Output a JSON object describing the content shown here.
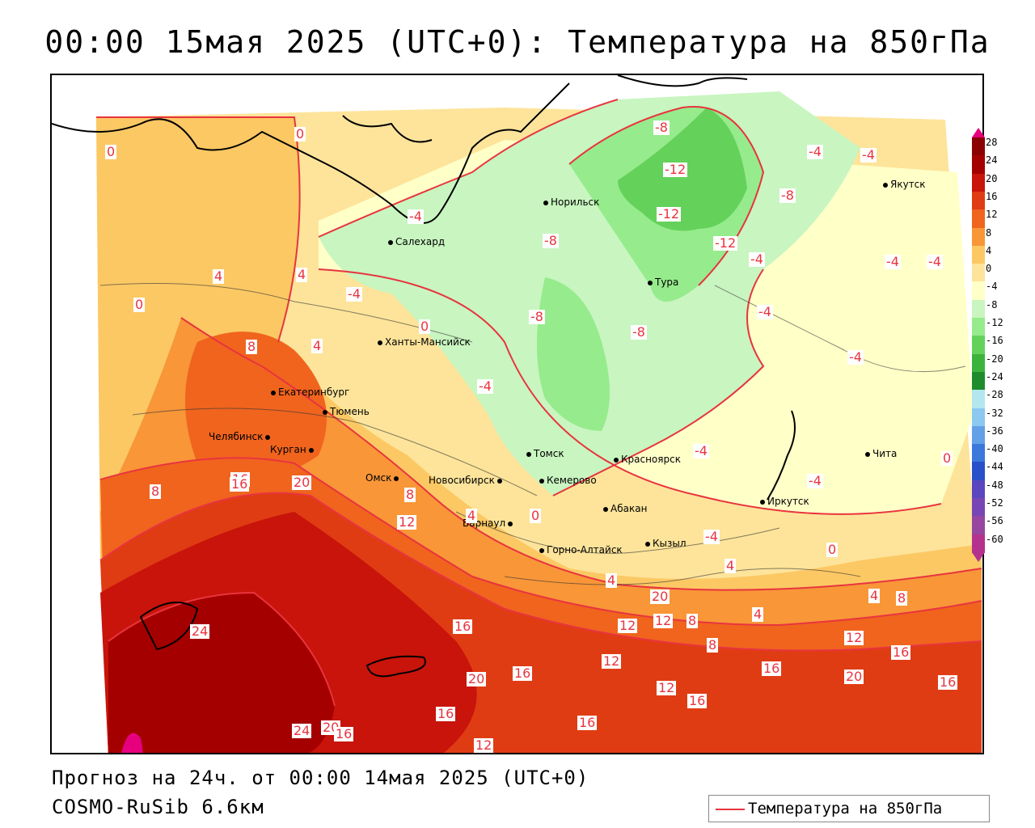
{
  "title": "00:00 15мая 2025 (UTC+0): Температура на 850гПа",
  "footer": {
    "forecast": "Прогноз на 24ч. от 00:00 14мая 2025 (UTC+0)",
    "model": "COSMO-RuSib 6.6км"
  },
  "legend": {
    "label": "Температура на 850гПа",
    "line_color": "#e8343f"
  },
  "colorbar": {
    "ticks": [
      "28",
      "24",
      "20",
      "16",
      "12",
      "8",
      "4",
      "0",
      "-4",
      "-8",
      "-12",
      "-16",
      "-20",
      "-24",
      "-28",
      "-32",
      "-36",
      "-40",
      "-44",
      "-48",
      "-52",
      "-56",
      "-60"
    ],
    "colors": [
      "#8b0000",
      "#a50000",
      "#c8140a",
      "#e03c14",
      "#f0641e",
      "#f89638",
      "#fcc864",
      "#fde49a",
      "#ffffc8",
      "#c8f5c0",
      "#96eb8c",
      "#64d25a",
      "#3cb43c",
      "#1e8c2d",
      "#b4e6f0",
      "#8cc8f0",
      "#64a0e6",
      "#3c78dc",
      "#2850c8",
      "#5a46be",
      "#7846b4",
      "#9646a0",
      "#b4328c"
    ]
  },
  "cities": [
    {
      "name": "Салехард"
    },
    {
      "name": "Норильск"
    },
    {
      "name": "Якутск"
    },
    {
      "name": "Тура"
    },
    {
      "name": "Ханты-Мансийск"
    },
    {
      "name": "Екатеринбург"
    },
    {
      "name": "Тюмень"
    },
    {
      "name": "Челябинск"
    },
    {
      "name": "Курган"
    },
    {
      "name": "Омск"
    },
    {
      "name": "Новосибирск"
    },
    {
      "name": "Томск"
    },
    {
      "name": "Кемерово"
    },
    {
      "name": "Красноярск"
    },
    {
      "name": "Барнаул"
    },
    {
      "name": "Абакан"
    },
    {
      "name": "Горно-Алтайск"
    },
    {
      "name": "Кызыл"
    },
    {
      "name": "Иркутск"
    },
    {
      "name": "Чита"
    }
  ],
  "contour_labels": [
    "0",
    "0",
    "4",
    "4",
    "0",
    "8",
    "4",
    "0",
    "-4",
    "-4",
    "-8",
    "-12",
    "-12",
    "-8",
    "-12",
    "-4",
    "-8",
    "-4",
    "-4",
    "-8",
    "-8",
    "-4",
    "-4",
    "-4",
    "-4",
    "-4",
    "0",
    "8",
    "16",
    "20",
    "8",
    "12",
    "4",
    "0",
    "4",
    "-4",
    "4",
    "4",
    "8",
    "4",
    "12",
    "8",
    "8",
    "16",
    "24",
    "12",
    "16",
    "20",
    "16",
    "12",
    "16",
    "12",
    "20",
    "16",
    "16",
    "12",
    "20",
    "16",
    "24",
    "20",
    "16",
    "16",
    "12",
    "16",
    "-4",
    "-4",
    "0"
  ]
}
